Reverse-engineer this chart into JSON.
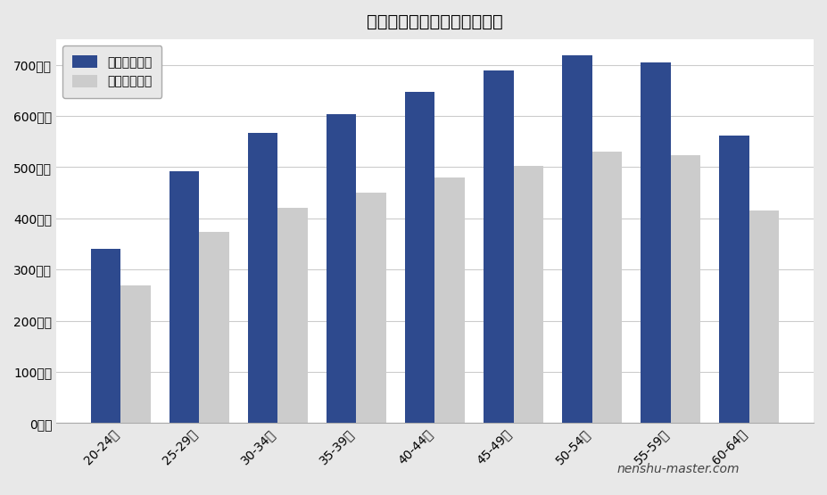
{
  "title": "北海道瓦斯の年齢別平均年収",
  "categories": [
    "20-24歳",
    "25-29歳",
    "30-34歳",
    "35-39歳",
    "40-44歳",
    "45-49歳",
    "50-54歳",
    "55-59歳",
    "60-64歳"
  ],
  "series1_label": "想定平均年収",
  "series2_label": "全国平均年収",
  "series1_values": [
    340,
    492,
    567,
    603,
    647,
    688,
    718,
    705,
    562
  ],
  "series2_values": [
    268,
    373,
    420,
    450,
    480,
    502,
    530,
    523,
    415
  ],
  "bar_color1": "#2e4a8e",
  "bar_color2": "#cccccc",
  "ytick_labels": [
    "0万円",
    "100万円",
    "200万円",
    "300万円",
    "400万円",
    "500万円",
    "600万円",
    "700万円"
  ],
  "ytick_values": [
    0,
    100,
    200,
    300,
    400,
    500,
    600,
    700
  ],
  "ylim": [
    0,
    750
  ],
  "watermark": "nenshu-master.com",
  "fig_facecolor": "#e8e8e8",
  "ax_facecolor": "#ffffff",
  "grid_color": "#cccccc",
  "title_fontsize": 14,
  "tick_fontsize": 10,
  "legend_fontsize": 10,
  "watermark_fontsize": 10,
  "bar_width": 0.38
}
